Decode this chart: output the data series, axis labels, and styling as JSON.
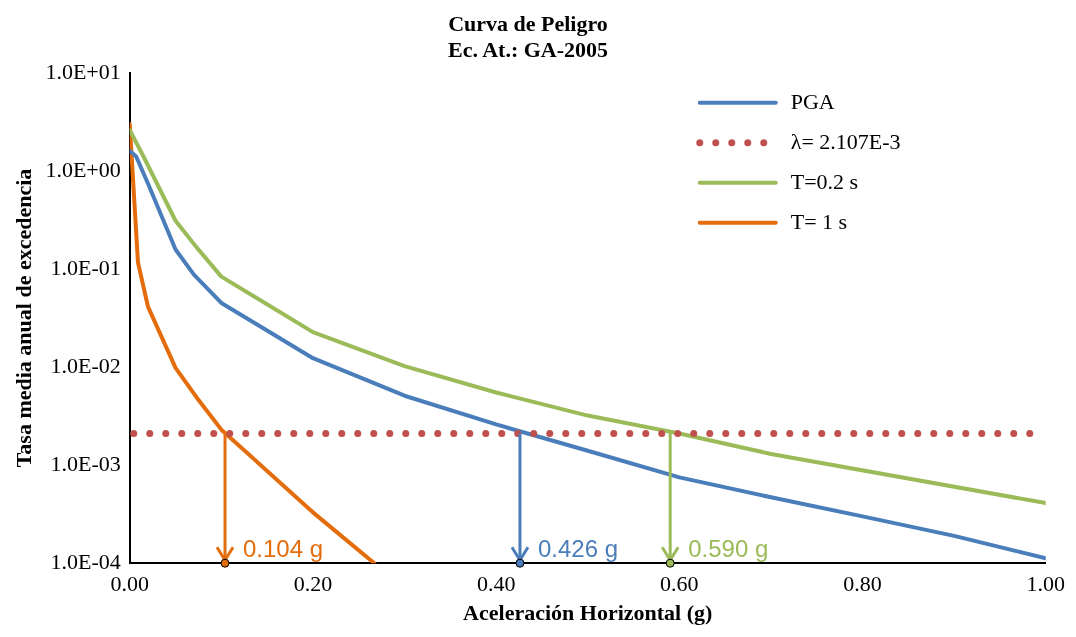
{
  "chart_data": {
    "type": "line",
    "title": "Curva de Peligro",
    "subtitle": "Ec. At.: GA-2005",
    "xlabel": "Aceleración Horizontal (g)",
    "ylabel": "Tasa media anual de excedencia",
    "log": "y",
    "xlim": [
      0,
      1
    ],
    "xticks": [
      {
        "value": 0,
        "label": "0.00"
      },
      {
        "value": 0.2,
        "label": "0.20"
      },
      {
        "value": 0.4,
        "label": "0.40"
      },
      {
        "value": 0.6,
        "label": "0.60"
      },
      {
        "value": 0.8,
        "label": "0.80"
      },
      {
        "value": 1,
        "label": "1.00"
      }
    ],
    "ylim": [
      0.0001,
      10
    ],
    "yticks": [
      {
        "value": 0.0001,
        "label": "1.0E-04"
      },
      {
        "value": 0.001,
        "label": "1.0E-03"
      },
      {
        "value": 0.01,
        "label": "1.0E-02"
      },
      {
        "value": 0.1,
        "label": "1.0E-01"
      },
      {
        "value": 1,
        "label": "1.0E+00"
      },
      {
        "value": 10,
        "label": "1.0E+01"
      }
    ],
    "grid": false,
    "legend": "top right",
    "marker": "none",
    "line_style": "solid",
    "series": [
      {
        "name": "PGA",
        "color": "#4a7ebb",
        "x": [
          0,
          0.007,
          0.02,
          0.05,
          0.07,
          0.1,
          0.2,
          0.3,
          0.4,
          0.5,
          0.6,
          0.7,
          0.8,
          0.9,
          1.0
        ],
        "values": [
          1.6,
          1.4,
          0.74,
          0.158,
          0.0875,
          0.045,
          0.0123,
          0.0051,
          0.0026,
          0.0014,
          0.00075,
          0.00047,
          0.0003,
          0.00019,
          0.000112
        ]
      },
      {
        "name": "T=0.2 s",
        "color": "#9bbb59",
        "x": [
          0,
          0.015,
          0.05,
          0.073,
          0.1,
          0.2,
          0.3,
          0.4,
          0.5,
          0.6,
          0.7,
          1.0
        ],
        "values": [
          2.6,
          1.4,
          0.31,
          0.166,
          0.0836,
          0.0227,
          0.0102,
          0.0055,
          0.0032,
          0.0021,
          0.0013,
          0.00041
        ]
      },
      {
        "name": "T= 1 s",
        "color": "#e46c0a",
        "x": [
          0,
          0.009,
          0.02,
          0.05,
          0.073,
          0.1,
          0.2,
          0.267
        ],
        "values": [
          3.0,
          0.116,
          0.041,
          0.0098,
          0.0049,
          0.0023,
          0.00033,
          0.0001
        ]
      }
    ],
    "ref_lines": [
      {
        "axis": "y",
        "value": 0.002107,
        "label": "λ= 2.107E-3",
        "color": "#c0504d",
        "line_style": "dotted"
      }
    ],
    "annotations": [
      {
        "text": "0.104 g",
        "x": 0.104,
        "y": 0.002107
      },
      {
        "text": "0.426 g",
        "x": 0.426,
        "y": 0.002107
      },
      {
        "text": "0.590 g",
        "x": 0.59,
        "y": 0.002107
      }
    ]
  }
}
